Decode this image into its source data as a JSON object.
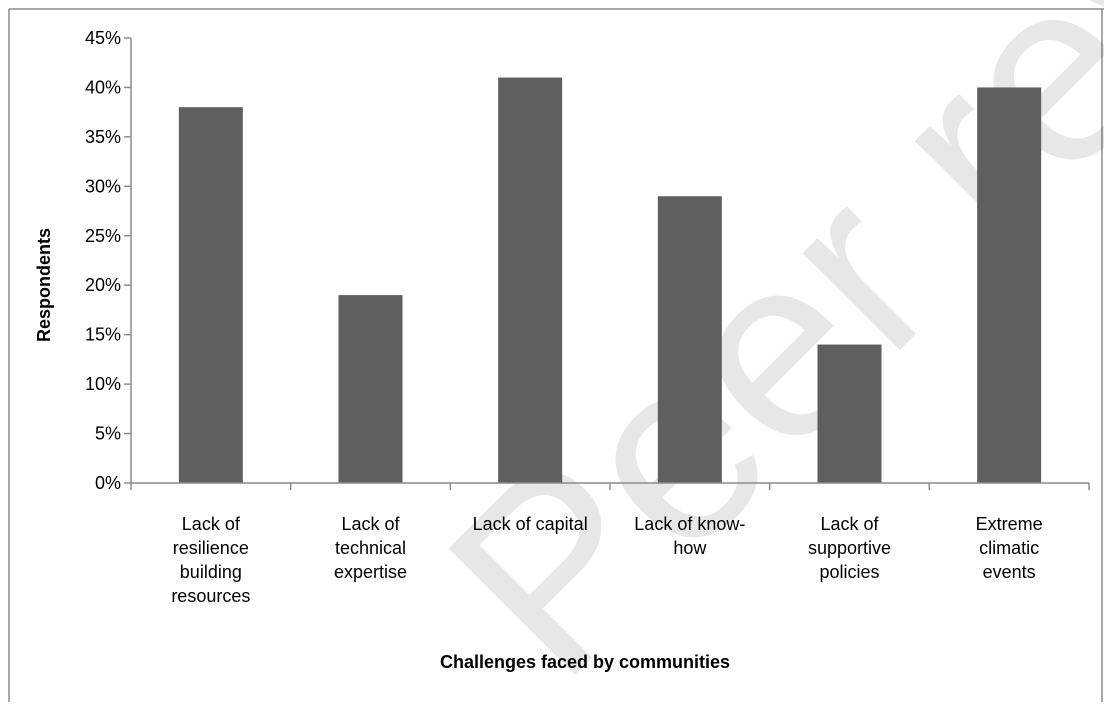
{
  "chart_data": {
    "type": "bar",
    "title": "",
    "xlabel": "Challenges faced by communities",
    "ylabel": "Respondents",
    "categories": [
      [
        "Lack of",
        "resilience",
        "building",
        "resources"
      ],
      [
        "Lack of",
        "technical",
        "expertise"
      ],
      [
        "Lack of capital"
      ],
      [
        "Lack of know-",
        "how"
      ],
      [
        "Lack of",
        "supportive",
        "policies"
      ],
      [
        "Extreme",
        "climatic",
        "events"
      ]
    ],
    "values": [
      38,
      19,
      41,
      29,
      14,
      40
    ],
    "ylim": [
      0,
      45
    ],
    "yticks": [
      0,
      5,
      10,
      15,
      20,
      25,
      30,
      35,
      40,
      45
    ],
    "ytick_suffix": "%",
    "grid": false,
    "legend": "none",
    "bar_color": "#5f5f5f",
    "axis_color": "#8c8c8c"
  },
  "watermark": "Peer review"
}
